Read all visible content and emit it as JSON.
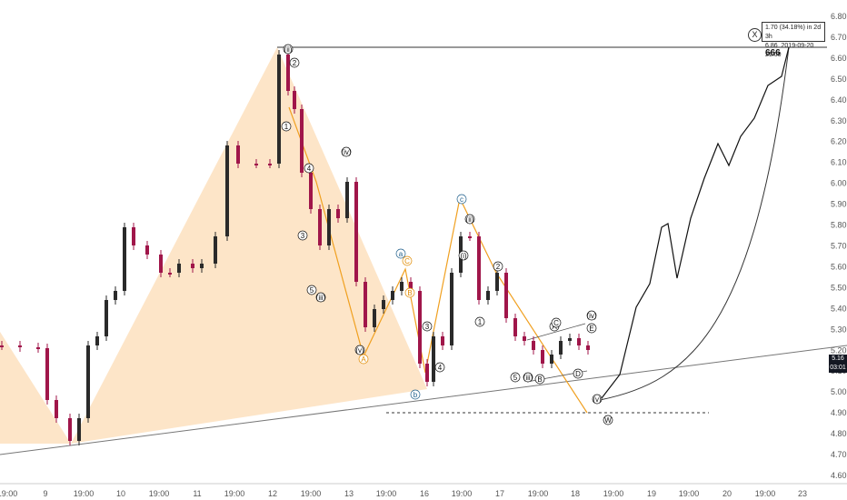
{
  "chart_data": {
    "type": "candlestick",
    "y_ticks": [
      "6.80",
      "6.70",
      "6.60",
      "6.50",
      "6.40",
      "6.30",
      "6.20",
      "6.10",
      "6.00",
      "5.90",
      "5.80",
      "5.70",
      "5.60",
      "5.50",
      "5.40",
      "5.30",
      "5.20",
      "5.10",
      "5.00",
      "4.90",
      "4.80",
      "4.70",
      "4.60"
    ],
    "x_ticks": [
      "19:00",
      "9",
      "19:00",
      "10",
      "19:00",
      "11",
      "19:00",
      "12",
      "19:00",
      "13",
      "19:00",
      "16",
      "19:00",
      "17",
      "19:00",
      "18",
      "19:00",
      "19",
      "19:00",
      "20",
      "19:00",
      "23"
    ],
    "ylim": [
      4.6,
      6.8
    ],
    "current_price": "5.16",
    "countdown": "03:01",
    "info_box": {
      "line1": "1.70 (34.18%) in 2d 3h",
      "line2a": "6.86",
      "line2b": "2019-09-20  21:00"
    },
    "target_wave_label": "X",
    "target_label": "666",
    "wave_labels": [
      {
        "t": "(ii)",
        "c": "#111"
      },
      {
        "t": "2",
        "c": "#111"
      },
      {
        "t": "1",
        "c": "#111"
      },
      {
        "t": "4",
        "c": "#111"
      },
      {
        "t": "3",
        "c": "#111"
      },
      {
        "t": "5",
        "c": "#111"
      },
      {
        "t": "(iii)",
        "c": "#111"
      },
      {
        "t": "(iv)",
        "c": "#111"
      },
      {
        "t": "(v)",
        "c": "#111"
      },
      {
        "t": "A",
        "c": "#e08a00"
      },
      {
        "t": "a",
        "c": "#1f5f8b"
      },
      {
        "t": "C",
        "c": "#e08a00"
      },
      {
        "t": "B",
        "c": "#e08a00"
      },
      {
        "t": "b",
        "c": "#1f5f8b"
      },
      {
        "t": "c",
        "c": "#1f5f8b"
      },
      {
        "t": "(ii)",
        "c": "#111"
      },
      {
        "t": "(i)",
        "c": "#111"
      },
      {
        "t": "1",
        "c": "#111"
      },
      {
        "t": "2",
        "c": "#111"
      },
      {
        "t": "3",
        "c": "#111"
      },
      {
        "t": "4",
        "c": "#111"
      },
      {
        "t": "5",
        "c": "#111"
      },
      {
        "t": "(iii)",
        "c": "#111"
      },
      {
        "t": "(iv)",
        "c": "#111"
      },
      {
        "t": "(v)",
        "c": "#111"
      },
      {
        "t": "W",
        "c": "#111"
      },
      {
        "t": "A",
        "c": "#111"
      },
      {
        "t": "B",
        "c": "#111"
      },
      {
        "t": "C",
        "c": "#111"
      },
      {
        "t": "D",
        "c": "#111"
      },
      {
        "t": "E",
        "c": "#111"
      }
    ],
    "colors": {
      "up": "#2a2a2a",
      "down": "#a0164a",
      "fill": "#fde5c8",
      "orange": "#f0a020",
      "line": "#111111"
    }
  }
}
